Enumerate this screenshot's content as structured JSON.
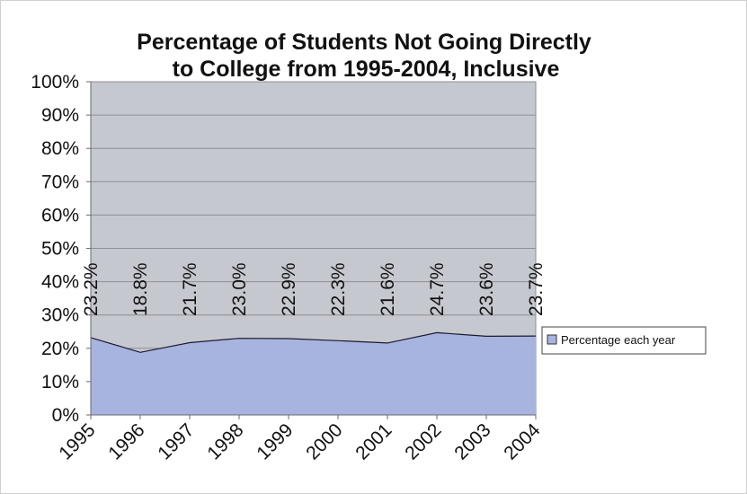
{
  "chart_data": {
    "type": "area",
    "title_lines": [
      "Percentage of Students Not Going Directly",
      "to College from 1995-2004, Inclusive"
    ],
    "categories": [
      "1995",
      "1996",
      "1997",
      "1998",
      "1999",
      "2000",
      "2001",
      "2002",
      "2003",
      "2004"
    ],
    "series": [
      {
        "name": "Percentage each year",
        "values": [
          23.2,
          18.8,
          21.7,
          23.0,
          22.9,
          22.3,
          21.6,
          24.7,
          23.6,
          23.7
        ],
        "labels": [
          "23.2%",
          "18.8%",
          "21.7%",
          "23.0%",
          "22.9%",
          "22.3%",
          "21.6%",
          "24.7%",
          "23.6%",
          "23.7%"
        ],
        "color": "#a8b4e0"
      }
    ],
    "ylim": [
      0,
      100
    ],
    "yticks": [
      0,
      10,
      20,
      30,
      40,
      50,
      60,
      70,
      80,
      90,
      100
    ],
    "ytick_labels": [
      "0%",
      "10%",
      "20%",
      "30%",
      "40%",
      "50%",
      "60%",
      "70%",
      "80%",
      "90%",
      "100%"
    ],
    "grid": true,
    "legend": "right",
    "plot_background": "#c6c8cf",
    "line_color": "#1a1a2e"
  }
}
